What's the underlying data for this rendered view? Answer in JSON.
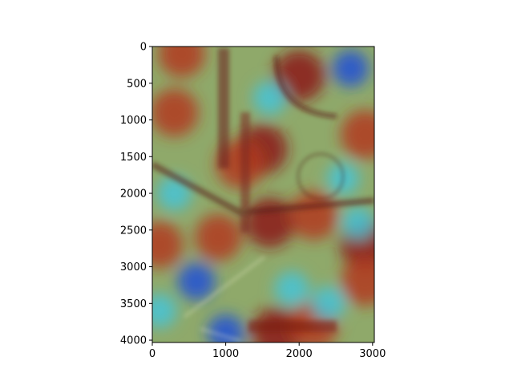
{
  "chart_data": {
    "type": "heatmap",
    "title": "",
    "xlabel": "",
    "ylabel": "",
    "xlim": [
      0,
      3024
    ],
    "ylim": [
      4032,
      0
    ],
    "y_inverted": true,
    "x_ticks": [
      {
        "value": 0,
        "label": "0"
      },
      {
        "value": 1000,
        "label": "1000"
      },
      {
        "value": 2000,
        "label": "2000"
      },
      {
        "value": 3000,
        "label": "3000"
      }
    ],
    "y_ticks": [
      {
        "value": 0,
        "label": "0"
      },
      {
        "value": 500,
        "label": "500"
      },
      {
        "value": 1000,
        "label": "1000"
      },
      {
        "value": 1500,
        "label": "1500"
      },
      {
        "value": 2000,
        "label": "2000"
      },
      {
        "value": 2500,
        "label": "2500"
      },
      {
        "value": 3000,
        "label": "3000"
      },
      {
        "value": 3500,
        "label": "3500"
      },
      {
        "value": 4000,
        "label": "4000"
      }
    ],
    "colormap": "jet",
    "grid": false,
    "legend": "none",
    "image_content": "attention heatmap overlaid on a photo of a street scene",
    "hotspots": [
      {
        "x": 2000,
        "y": 400,
        "intensity": 1.0
      },
      {
        "x": 1500,
        "y": 1400,
        "intensity": 0.95
      },
      {
        "x": 1200,
        "y": 1600,
        "intensity": 0.9
      },
      {
        "x": 2900,
        "y": 1200,
        "intensity": 0.9
      },
      {
        "x": 300,
        "y": 900,
        "intensity": 0.85
      },
      {
        "x": 1600,
        "y": 2400,
        "intensity": 0.95
      },
      {
        "x": 2200,
        "y": 2300,
        "intensity": 0.9
      },
      {
        "x": 2900,
        "y": 2700,
        "intensity": 0.95
      },
      {
        "x": 2900,
        "y": 3200,
        "intensity": 0.9
      },
      {
        "x": 1700,
        "y": 3900,
        "intensity": 1.0
      },
      {
        "x": 2200,
        "y": 3800,
        "intensity": 0.9
      },
      {
        "x": 100,
        "y": 2700,
        "intensity": 0.8
      },
      {
        "x": 900,
        "y": 2600,
        "intensity": 0.8
      },
      {
        "x": 400,
        "y": 100,
        "intensity": 0.8
      }
    ],
    "coldspots": [
      {
        "x": 600,
        "y": 3200,
        "intensity": 0.95
      },
      {
        "x": 1000,
        "y": 3900,
        "intensity": 0.9
      },
      {
        "x": 1900,
        "y": 3300,
        "intensity": 0.8
      },
      {
        "x": 2400,
        "y": 3500,
        "intensity": 0.8
      },
      {
        "x": 1600,
        "y": 700,
        "intensity": 0.75
      },
      {
        "x": 2700,
        "y": 300,
        "intensity": 0.9
      },
      {
        "x": 300,
        "y": 2000,
        "intensity": 0.8
      },
      {
        "x": 2600,
        "y": 1800,
        "intensity": 0.7
      },
      {
        "x": 2800,
        "y": 2400,
        "intensity": 0.7
      },
      {
        "x": 100,
        "y": 3600,
        "intensity": 0.8
      }
    ]
  }
}
